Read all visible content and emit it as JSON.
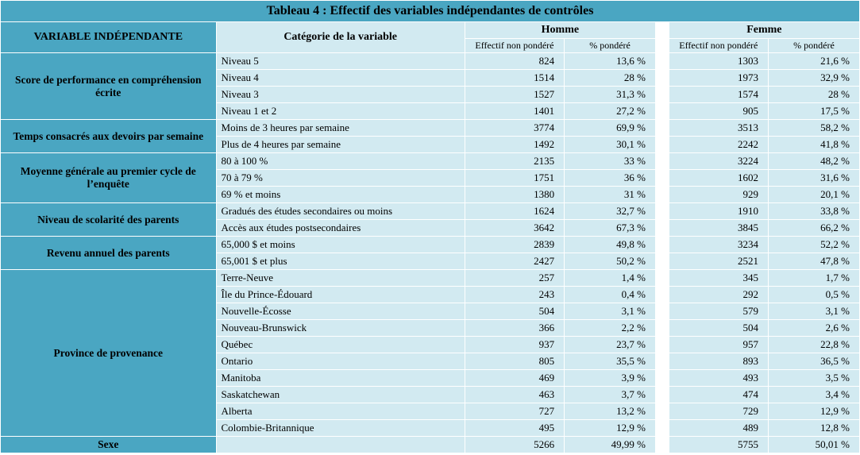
{
  "table": {
    "title": "Tableau 4 : Effectif des variables indépendantes de contrôles",
    "headers": {
      "variable": "VARIABLE INDÉPENDANTE",
      "category": "Catégorie de la variable",
      "male": "Homme",
      "female": "Femme",
      "eff": "Effectif non pondéré",
      "pct": "% pondéré"
    },
    "colors": {
      "header_dark": "#4aa6c2",
      "cell_light": "#d2eaf1",
      "border": "#ffffff"
    },
    "groups": [
      {
        "label": "Score de performance en compréhension écrite",
        "rows": [
          {
            "cat": "Niveau 5",
            "m_n": "824",
            "m_p": "13,6 %",
            "f_n": "1303",
            "f_p": "21,6 %"
          },
          {
            "cat": "Niveau 4",
            "m_n": "1514",
            "m_p": "28 %",
            "f_n": "1973",
            "f_p": "32,9 %"
          },
          {
            "cat": "Niveau 3",
            "m_n": "1527",
            "m_p": "31,3 %",
            "f_n": "1574",
            "f_p": "28 %"
          },
          {
            "cat": "Niveau 1 et 2",
            "m_n": "1401",
            "m_p": "27,2 %",
            "f_n": "905",
            "f_p": "17,5 %"
          }
        ]
      },
      {
        "label": "Temps consacrés aux devoirs par semaine",
        "rows": [
          {
            "cat": "Moins de 3 heures par semaine",
            "m_n": "3774",
            "m_p": "69,9 %",
            "f_n": "3513",
            "f_p": "58,2 %"
          },
          {
            "cat": "Plus de 4 heures par semaine",
            "m_n": "1492",
            "m_p": "30,1 %",
            "f_n": "2242",
            "f_p": "41,8 %"
          }
        ]
      },
      {
        "label": "Moyenne générale au premier cycle de l’enquête",
        "rows": [
          {
            "cat": "80 à 100 %",
            "m_n": "2135",
            "m_p": "33 %",
            "f_n": "3224",
            "f_p": "48,2 %"
          },
          {
            "cat": "70 à 79 %",
            "m_n": "1751",
            "m_p": "36 %",
            "f_n": "1602",
            "f_p": "31,6 %"
          },
          {
            "cat": "69 % et moins",
            "m_n": "1380",
            "m_p": "31 %",
            "f_n": "929",
            "f_p": "20,1 %"
          }
        ]
      },
      {
        "label": "Niveau de scolarité des parents",
        "rows": [
          {
            "cat": "Gradués des études secondaires ou moins",
            "m_n": "1624",
            "m_p": "32,7 %",
            "f_n": "1910",
            "f_p": "33,8 %"
          },
          {
            "cat": "Accès aux études postsecondaires",
            "m_n": "3642",
            "m_p": "67,3 %",
            "f_n": "3845",
            "f_p": "66,2 %"
          }
        ]
      },
      {
        "label": "Revenu annuel des parents",
        "rows": [
          {
            "cat": "65,000 $ et moins",
            "m_n": "2839",
            "m_p": "49,8 %",
            "f_n": "3234",
            "f_p": "52,2 %"
          },
          {
            "cat": "65,001 $ et plus",
            "m_n": "2427",
            "m_p": "50,2 %",
            "f_n": "2521",
            "f_p": "47,8 %"
          }
        ]
      },
      {
        "label": "Province de provenance",
        "rows": [
          {
            "cat": "Terre-Neuve",
            "m_n": "257",
            "m_p": "1,4 %",
            "f_n": "345",
            "f_p": "1,7 %"
          },
          {
            "cat": "Île du Prince-Édouard",
            "m_n": "243",
            "m_p": "0,4 %",
            "f_n": "292",
            "f_p": "0,5 %"
          },
          {
            "cat": "Nouvelle-Écosse",
            "m_n": "504",
            "m_p": "3,1 %",
            "f_n": "579",
            "f_p": "3,1 %"
          },
          {
            "cat": "Nouveau-Brunswick",
            "m_n": "366",
            "m_p": "2,2 %",
            "f_n": "504",
            "f_p": "2,6 %"
          },
          {
            "cat": "Québec",
            "m_n": "937",
            "m_p": "23,7 %",
            "f_n": "957",
            "f_p": "22,8 %"
          },
          {
            "cat": "Ontario",
            "m_n": "805",
            "m_p": "35,5 %",
            "f_n": "893",
            "f_p": "36,5 %"
          },
          {
            "cat": "Manitoba",
            "m_n": "469",
            "m_p": "3,9 %",
            "f_n": "493",
            "f_p": "3,5 %"
          },
          {
            "cat": "Saskatchewan",
            "m_n": "463",
            "m_p": "3,7 %",
            "f_n": "474",
            "f_p": "3,4 %"
          },
          {
            "cat": "Alberta",
            "m_n": "727",
            "m_p": "13,2 %",
            "f_n": "729",
            "f_p": "12,9 %"
          },
          {
            "cat": "Colombie-Britannique",
            "m_n": "495",
            "m_p": "12,9 %",
            "f_n": "489",
            "f_p": "12,8 %"
          }
        ]
      },
      {
        "label": "Sexe",
        "rows": [
          {
            "cat": "",
            "m_n": "5266",
            "m_p": "49,99 %",
            "f_n": "5755",
            "f_p": "50,01 %"
          }
        ]
      }
    ]
  }
}
